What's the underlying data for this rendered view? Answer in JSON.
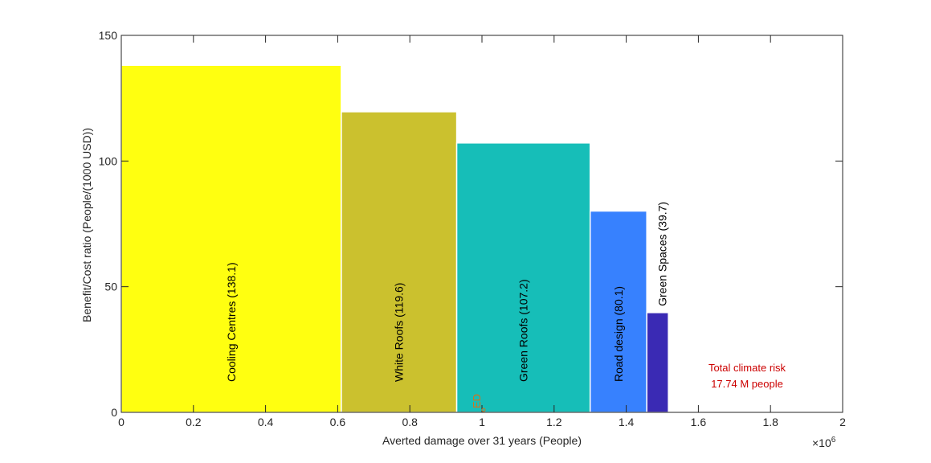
{
  "chart_data": {
    "type": "bar",
    "xlabel": "Averted damage over 31 years (People)",
    "ylabel": "Benefit/Cost ratio (People/(1000 USD))",
    "x_multiplier_label": "×10",
    "x_multiplier_exponent": "6",
    "xlim": [
      0,
      2
    ],
    "ylim": [
      0,
      150
    ],
    "xticks": [
      "0",
      "0.2",
      "0.4",
      "0.6",
      "0.8",
      "1",
      "1.2",
      "1.4",
      "1.6",
      "1.8",
      "2"
    ],
    "yticks": [
      "0",
      "50",
      "100",
      "150"
    ],
    "grid": false,
    "bars": [
      {
        "name": "Cooling Centres",
        "x_start": 0,
        "x_end": 0.61,
        "value": 138.1,
        "label": "Cooling Centres  (138.1)",
        "color": "#FFFF10",
        "label_position": "inside"
      },
      {
        "name": "White Roofs",
        "x_start": 0.61,
        "x_end": 0.93,
        "value": 119.6,
        "label": "White Roofs  (119.6)",
        "color": "#CBC12E",
        "label_position": "inside"
      },
      {
        "name": "Green Roofs",
        "x_start": 0.93,
        "x_end": 1.3,
        "value": 107.2,
        "label": "Green Roofs  (107.2)",
        "color": "#16BEB8",
        "label_position": "inside"
      },
      {
        "name": "Road design",
        "x_start": 1.3,
        "x_end": 1.457,
        "value": 80.1,
        "label": "Road design  (80.1)",
        "color": "#3781FE",
        "label_position": "inside"
      },
      {
        "name": "Green Spaces",
        "x_start": 1.457,
        "x_end": 1.517,
        "value": 39.7,
        "label": "Green Spaces  (39.7)",
        "color": "#3A2AB4",
        "label_position": "above"
      }
    ],
    "annotations": [
      {
        "text": "Total climate risk",
        "color": "#CC0000"
      },
      {
        "text": "17.74 M people",
        "color": "#CC0000"
      }
    ],
    "marker": {
      "text": "ED",
      "color": "#D9701A",
      "x": 1.0
    }
  }
}
